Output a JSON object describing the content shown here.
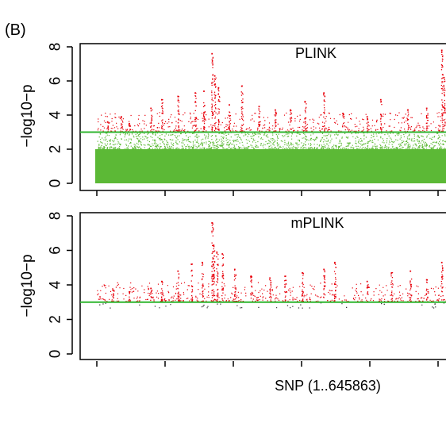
{
  "panel_label": "(B)",
  "colors": {
    "significant": "#e8000b",
    "nonsignificant": "#5cb936",
    "threshold": "#2fb52f",
    "axis": "#000000"
  },
  "chart_data": [
    {
      "type": "scatter",
      "title": "PLINK",
      "xlabel": "",
      "ylabel": "−log10−p",
      "ylim": [
        0,
        8
      ],
      "yticks": [
        "0",
        "2",
        "4",
        "6",
        "8"
      ],
      "threshold": 3,
      "xrange": [
        1,
        645863
      ],
      "background_band_max": 2,
      "grid": false,
      "peaks": [
        {
          "x": 20000,
          "y": 3.6
        },
        {
          "x": 45000,
          "y": 3.9
        },
        {
          "x": 60000,
          "y": 3.5
        },
        {
          "x": 100000,
          "y": 4.4
        },
        {
          "x": 120000,
          "y": 4.9
        },
        {
          "x": 150000,
          "y": 5.1
        },
        {
          "x": 182000,
          "y": 5.3
        },
        {
          "x": 198000,
          "y": 5.4
        },
        {
          "x": 213000,
          "y": 7.6
        },
        {
          "x": 218000,
          "y": 6.3
        },
        {
          "x": 225000,
          "y": 5.6
        },
        {
          "x": 245000,
          "y": 4.6
        },
        {
          "x": 268000,
          "y": 5.7
        },
        {
          "x": 300000,
          "y": 4.5
        },
        {
          "x": 330000,
          "y": 4.3
        },
        {
          "x": 358000,
          "y": 4.3
        },
        {
          "x": 385000,
          "y": 4.8
        },
        {
          "x": 420000,
          "y": 5.3
        },
        {
          "x": 455000,
          "y": 4.1
        },
        {
          "x": 500000,
          "y": 3.9
        },
        {
          "x": 525000,
          "y": 4.9
        },
        {
          "x": 575000,
          "y": 4.3
        },
        {
          "x": 610000,
          "y": 4.4
        },
        {
          "x": 638000,
          "y": 7.8
        },
        {
          "x": 642000,
          "y": 6.2
        }
      ]
    },
    {
      "type": "scatter",
      "title": "mPLINK",
      "xlabel": "SNP (1..645863)",
      "ylabel": "−log10−p",
      "ylim": [
        0,
        8
      ],
      "yticks": [
        "0",
        "2",
        "4",
        "6",
        "8"
      ],
      "threshold": 3,
      "xrange": [
        1,
        645863
      ],
      "grid": false,
      "peaks": [
        {
          "x": 30000,
          "y": 3.7
        },
        {
          "x": 60000,
          "y": 3.6
        },
        {
          "x": 100000,
          "y": 3.8
        },
        {
          "x": 120000,
          "y": 4.2
        },
        {
          "x": 150000,
          "y": 4.8
        },
        {
          "x": 175000,
          "y": 5.2
        },
        {
          "x": 195000,
          "y": 5.3
        },
        {
          "x": 213000,
          "y": 7.6
        },
        {
          "x": 216000,
          "y": 6.3
        },
        {
          "x": 222000,
          "y": 5.9
        },
        {
          "x": 232000,
          "y": 5.8
        },
        {
          "x": 255000,
          "y": 4.9
        },
        {
          "x": 285000,
          "y": 4.5
        },
        {
          "x": 320000,
          "y": 4.4
        },
        {
          "x": 348000,
          "y": 4.5
        },
        {
          "x": 380000,
          "y": 4.7
        },
        {
          "x": 420000,
          "y": 4.9
        },
        {
          "x": 440000,
          "y": 5.3
        },
        {
          "x": 500000,
          "y": 4.2
        },
        {
          "x": 545000,
          "y": 4.7
        },
        {
          "x": 580000,
          "y": 4.8
        },
        {
          "x": 610000,
          "y": 4.3
        },
        {
          "x": 638000,
          "y": 5.3
        }
      ]
    }
  ]
}
